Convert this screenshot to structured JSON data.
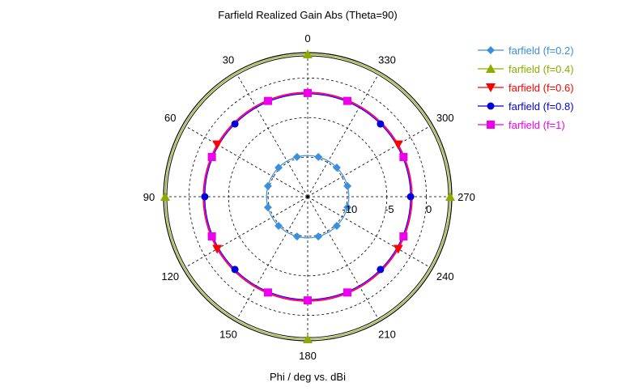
{
  "chart_data": {
    "type": "polar",
    "title": "Farfield Realized Gain Abs (Theta=90)",
    "xlabel": "Phi / deg vs. dBi",
    "angle_labels": [
      "0",
      "30",
      "60",
      "90",
      "120",
      "150",
      "180",
      "210",
      "240",
      "270",
      "300",
      "330"
    ],
    "angle_ticks": [
      0,
      30,
      60,
      90,
      120,
      150,
      180,
      210,
      240,
      270,
      300,
      330
    ],
    "radial_ticks": [
      -10,
      -5,
      0
    ],
    "radial_tick_labels": [
      "-10",
      "-5",
      "0"
    ],
    "rlim": [
      -15,
      3
    ],
    "grid": true,
    "legend_position": "top-right",
    "series": [
      {
        "name": "farfield (f=0.2)",
        "color": "#3c8fdc",
        "marker": "diamond",
        "r": -9.8
      },
      {
        "name": "farfield (f=0.4)",
        "color": "#8faa00",
        "marker": "triangle-up",
        "r": 3.0
      },
      {
        "name": "farfield (f=0.6)",
        "color": "#ff0000",
        "marker": "triangle-down",
        "r": -1.8
      },
      {
        "name": "farfield (f=0.8)",
        "color": "#0000dd",
        "marker": "circle",
        "r": -2.0
      },
      {
        "name": "farfield (f=1)",
        "color": "#ee00ee",
        "marker": "square",
        "r": -1.9
      }
    ]
  }
}
